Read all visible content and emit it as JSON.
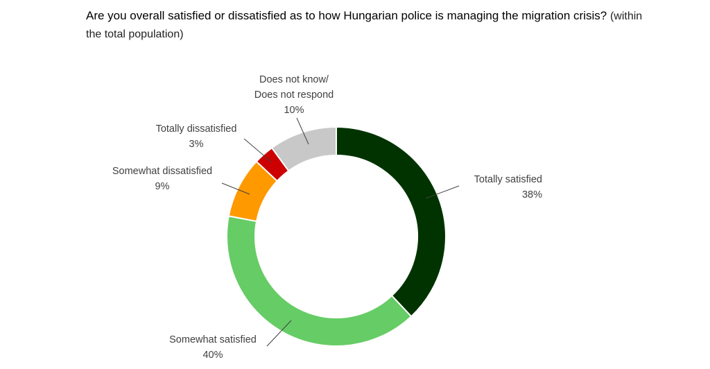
{
  "title": {
    "main": "Are you overall satisfied or dissatisfied as to how Hungarian police is managing the migration crisis?",
    "sub": "(within the total population)"
  },
  "chart_data": {
    "type": "pie",
    "donut": true,
    "legend": "none",
    "slices": [
      {
        "label": "Totally satisfied",
        "value": 38,
        "value_label": "38%",
        "color": "#003300"
      },
      {
        "label": "Somewhat satisfied",
        "value": 40,
        "value_label": "40%",
        "color": "#66cc66"
      },
      {
        "label": "Somewhat dissatisfied",
        "value": 9,
        "value_label": "9%",
        "color": "#ff9900"
      },
      {
        "label": "Totally dissatisfied",
        "value": 3,
        "value_label": "3%",
        "color": "#cc0000"
      },
      {
        "label": "Does not know/ Does not respond",
        "label_lines": [
          "Does not know/",
          "Does not respond"
        ],
        "value": 10,
        "value_label": "10%",
        "color": "#c8c8c8"
      }
    ]
  }
}
